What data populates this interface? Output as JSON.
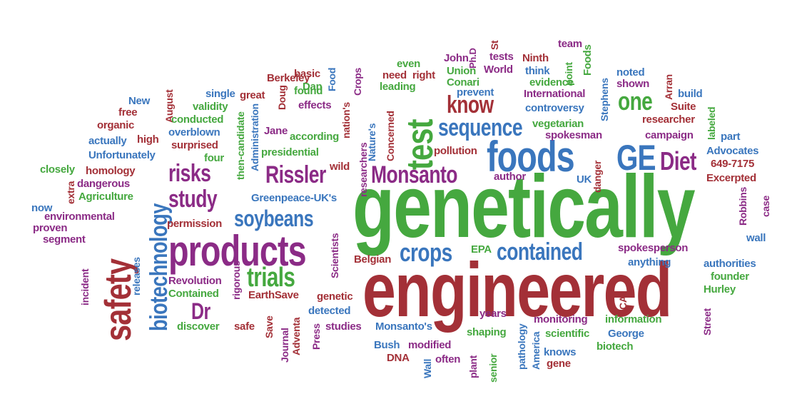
{
  "words": {
    "genetically": "genetically",
    "engineered": "engineered",
    "products": "products",
    "safety": "safety",
    "foods": "foods",
    "test": "test",
    "GE": "GE",
    "Diet": "Diet",
    "Monsanto": "Monsanto",
    "Rissler": "Rissler",
    "biotechnology": "biotechnology",
    "soybeans": "soybeans",
    "crops": "crops",
    "contained": "contained",
    "trials": "trials",
    "Dr": "Dr",
    "study": "study",
    "risks": "risks",
    "sequence": "sequence",
    "know": "know",
    "one": "one",
    "team": "team",
    "St": "St",
    "PhD": "Ph.D",
    "tests": "tests",
    "Ninth": "Ninth",
    "Foods": "Foods",
    "John": "John",
    "even": "even",
    "Crops": "Crops",
    "Food": "Food",
    "basic": "basic",
    "need": "need",
    "right": "right",
    "Union": "Union",
    "World": "World",
    "think": "think",
    "point": "point",
    "Stephens": "Stephens",
    "noted": "noted",
    "shown": "shown",
    "Arran": "Arran",
    "Berkeley": "Berkeley",
    "Dan": "Dan",
    "leading": "leading",
    "Conari": "Conari",
    "evidence": "evidence",
    "Doug": "Doug",
    "single": "single",
    "great": "great",
    "found": "found",
    "prevent": "prevent",
    "International": "International",
    "build": "build",
    "New": "New",
    "August": "August",
    "validity": "validity",
    "effects": "effects",
    "nations": "nation's",
    "Concerned": "Concerned",
    "controversy": "controversy",
    "Suite": "Suite",
    "free": "free",
    "conducted": "conducted",
    "Jane": "Jane",
    "vegetarian": "vegetarian",
    "researcher": "researcher",
    "organic": "organic",
    "high": "high",
    "Administration": "Administration",
    "thencandidate": "then-candidate",
    "spokesman": "spokesman",
    "labeled": "labeled",
    "actually": "actually",
    "overblown": "overblown",
    "according": "according",
    "researchers": "researchers",
    "Natures": "Nature's",
    "campaign": "campaign",
    "part": "part",
    "surprised": "surprised",
    "Unfortunately": "Unfortunately",
    "presidential": "presidential",
    "pollution": "pollution",
    "Advocates": "Advocates",
    "four": "four",
    "wild": "wild",
    "danger": "danger",
    "closely": "closely",
    "homology": "homology",
    "author": "author",
    "phone": "649-7175",
    "dangerous": "dangerous",
    "UK": "UK",
    "Excerpted": "Excerpted",
    "extra": "extra",
    "Agriculture": "Agriculture",
    "GreenpeaceUKs": "Greenpeace-UK's",
    "now": "now",
    "case": "case",
    "environmental": "environmental",
    "Robbins": "Robbins",
    "proven": "proven",
    "permission": "permission",
    "segment": "segment",
    "Scientists": "Scientists",
    "EPA": "EPA",
    "wall": "wall",
    "spokesperson": "spokesperson",
    "Belgian": "Belgian",
    "anything": "anything",
    "authorities": "authorities",
    "releases": "releases",
    "incident": "incident",
    "Revolution": "Revolution",
    "rigorous": "rigorous",
    "founder": "founder",
    "Contained": "Contained",
    "Hurley": "Hurley",
    "EarthSave": "EarthSave",
    "genetic": "genetic",
    "CA": "CA",
    "detected": "detected",
    "years": "years",
    "Save": "Save",
    "monitoring": "monitoring",
    "information": "information",
    "Street": "Street",
    "discover": "discover",
    "safe": "safe",
    "Journal": "Journal",
    "Adventa": "Adventa",
    "Press": "Press",
    "studies": "studies",
    "Monsantos": "Monsanto's",
    "shaping": "shaping",
    "scientific": "scientific",
    "George": "George",
    "Bush": "Bush",
    "modified": "modified",
    "pathology": "pathology",
    "knows": "knows",
    "biotech": "biotech",
    "DNA": "DNA",
    "Wall": "Wall",
    "often": "often",
    "plant": "plant",
    "senior": "senior",
    "America": "America",
    "gene": "gene"
  }
}
